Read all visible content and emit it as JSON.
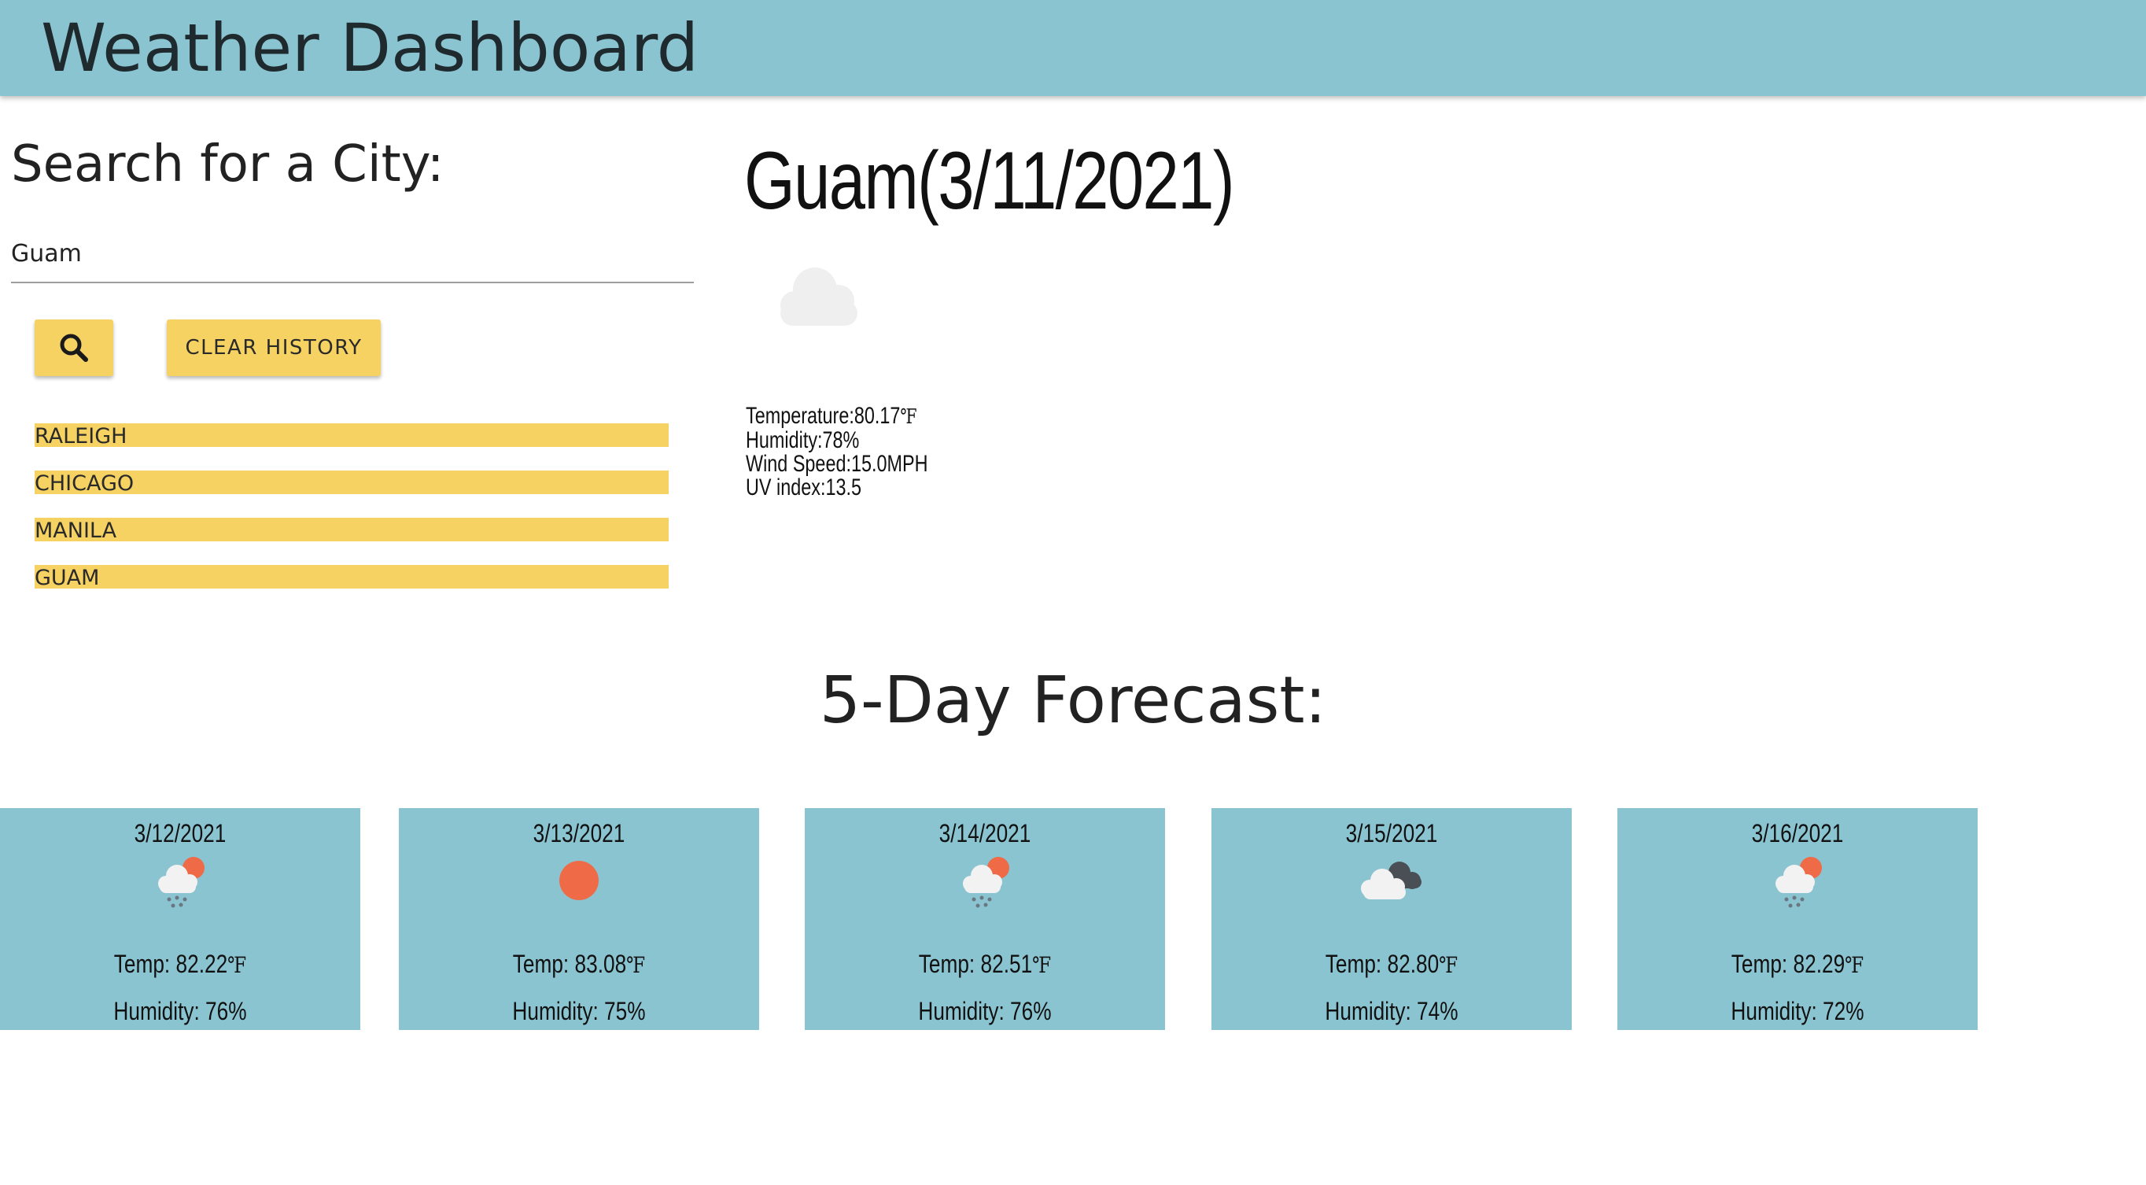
{
  "header": {
    "title": "Weather Dashboard"
  },
  "search": {
    "heading": "Search for a City:",
    "value": "Guam",
    "search_icon": "search-icon",
    "clear_label": "CLEAR HISTORY"
  },
  "history": [
    "RALEIGH",
    "CHICAGO",
    "MANILA",
    "GUAM"
  ],
  "current": {
    "title": "Guam(3/11/2021)",
    "icon": "cloud-icon",
    "temperature_label": "Temperature:",
    "temperature_value": "80.17",
    "temperature_unit": "℉",
    "humidity": "Humidity:78%",
    "wind": "Wind Speed:15.0MPH",
    "uv": "UV index:13.5"
  },
  "forecast": {
    "heading": "5-Day Forecast:",
    "days": [
      {
        "date": "3/12/2021",
        "icon": "rain-sun-icon",
        "temp_label": "Temp: 82.22",
        "temp_unit": "℉",
        "humidity": "Humidity: 76%"
      },
      {
        "date": "3/13/2021",
        "icon": "sun-icon",
        "temp_label": "Temp: 83.08",
        "temp_unit": "℉",
        "humidity": "Humidity: 75%"
      },
      {
        "date": "3/14/2021",
        "icon": "rain-sun-icon",
        "temp_label": "Temp: 82.51",
        "temp_unit": "℉",
        "humidity": "Humidity: 76%"
      },
      {
        "date": "3/15/2021",
        "icon": "broken-clouds-icon",
        "temp_label": "Temp: 82.80",
        "temp_unit": "℉",
        "humidity": "Humidity: 74%"
      },
      {
        "date": "3/16/2021",
        "icon": "rain-sun-icon",
        "temp_label": "Temp: 82.29",
        "temp_unit": "℉",
        "humidity": "Humidity: 72%"
      }
    ]
  },
  "colors": {
    "header_bg": "#8bc4d1",
    "button_bg": "#f6d263",
    "card_bg": "#8bc4d1",
    "sun": "#ef6b47"
  }
}
